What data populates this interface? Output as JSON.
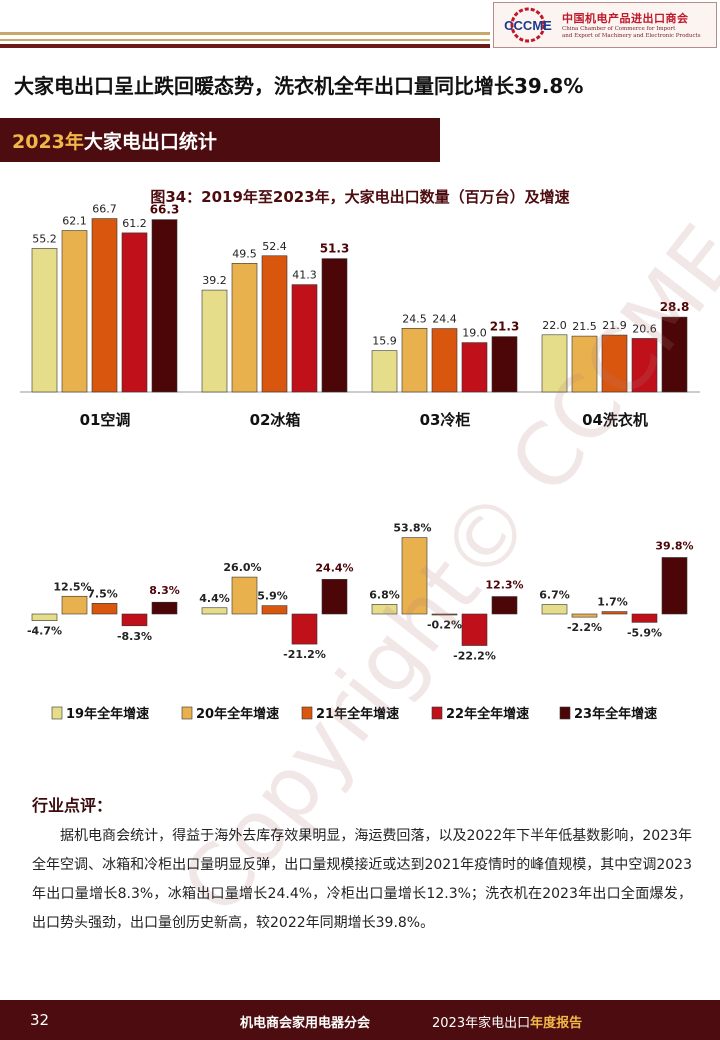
{
  "header": {
    "logo_text_cn": "中国机电产品进出口商会",
    "logo_text_en_1": "China Chamber of Commerce for Import",
    "logo_text_en_2": "and Export of Machinery and Electronic Products",
    "logo_mark": "CCCME"
  },
  "headline": "大家电出口呈止跌回暖态势，洗衣机全年出口量同比增长39.8%",
  "section": {
    "year": "2023年",
    "title": "大家电出口统计"
  },
  "figure_title": "图34：2019年至2023年，大家电出口数量（百万台）及增速",
  "watermark": "Copyright© CCCME",
  "chart_data": {
    "type": "bar",
    "categories": [
      "01空调",
      "02冰箱",
      "03冷柜",
      "04洗衣机"
    ],
    "volumes": [
      [
        55.2,
        62.1,
        66.7,
        61.2,
        66.3
      ],
      [
        39.2,
        49.5,
        52.4,
        41.3,
        51.3
      ],
      [
        15.9,
        24.5,
        24.4,
        19.0,
        21.3
      ],
      [
        22.0,
        21.5,
        21.9,
        20.6,
        28.8
      ]
    ],
    "volume_labels": [
      [
        "55.2",
        "62.1",
        "66.7",
        "61.2",
        "66.3"
      ],
      [
        "39.2",
        "49.5",
        "52.4",
        "41.3",
        "51.3"
      ],
      [
        "15.9",
        "24.5",
        "24.4",
        "19.0",
        "21.3"
      ],
      [
        "22.0",
        "21.5",
        "21.9",
        "20.6",
        "28.8"
      ]
    ],
    "growth": [
      [
        -4.7,
        12.5,
        7.5,
        -8.3,
        8.3
      ],
      [
        4.4,
        26.0,
        5.9,
        -21.2,
        24.4
      ],
      [
        6.8,
        53.8,
        -0.2,
        -22.2,
        12.3
      ],
      [
        6.7,
        -2.2,
        1.7,
        -5.9,
        39.8
      ]
    ],
    "growth_labels": [
      [
        "-4.7%",
        "12.5%",
        "7.5%",
        "-8.3%",
        "8.3%"
      ],
      [
        "4.4%",
        "26.0%",
        "5.9%",
        "-21.2%",
        "24.4%"
      ],
      [
        "6.8%",
        "53.8%",
        "-0.2%",
        "-22.2%",
        "12.3%"
      ],
      [
        "6.7%",
        "-2.2%",
        "1.7%",
        "-5.9%",
        "39.8%"
      ]
    ],
    "series": [
      {
        "name": "19年全年增速",
        "color": "#e6dd8a"
      },
      {
        "name": "20年全年增速",
        "color": "#e8b14e"
      },
      {
        "name": "21年全年增速",
        "color": "#d9560f"
      },
      {
        "name": "22年全年增速",
        "color": "#c0101a"
      },
      {
        "name": "23年全年增速",
        "color": "#4d0608"
      }
    ],
    "legend_position": "bottom",
    "grid": false
  },
  "comment": {
    "title": "行业点评：",
    "body": "据机电商会统计，得益于海外去库存效果明显，海运费回落，以及2022年下半年低基数影响，2023年全年空调、冰箱和冷柜出口量明显反弹，出口量规模接近或达到2021年疫情时的峰值规模，其中空调2023年出口量增长8.3%，冰箱出口量增长24.4%，冷柜出口量增长12.3%；洗衣机在2023年出口全面爆发，出口势头强劲，出口量创历史新高，较2022年同期增长39.8%。"
  },
  "footer": {
    "page": "32",
    "org": "机电商会家用电器分会",
    "report_a": "2023年家电出口",
    "report_b": "年度报告"
  }
}
